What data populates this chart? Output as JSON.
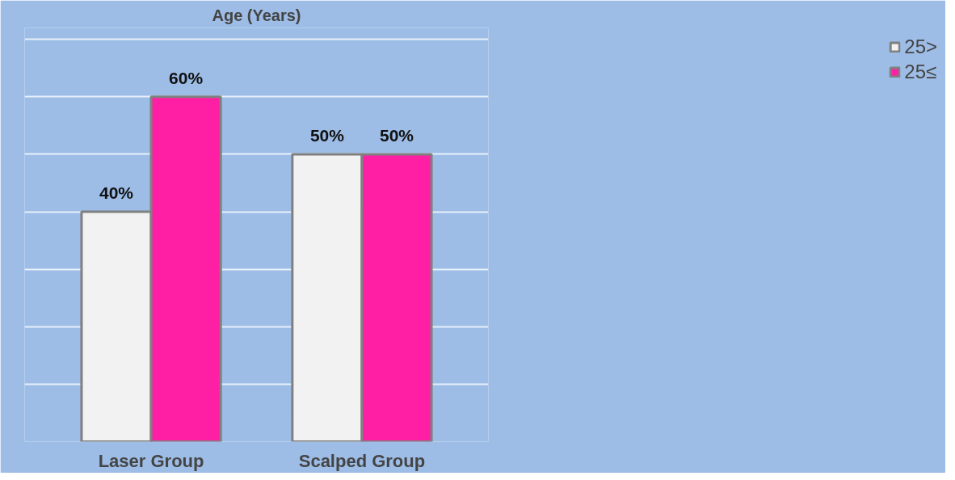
{
  "chart_data": {
    "type": "bar",
    "title": "Age (Years)",
    "categories": [
      "Laser Group",
      "Scalped Group"
    ],
    "series": [
      {
        "name": "25>",
        "color": "#f2f2f2",
        "values": [
          40,
          50
        ],
        "value_labels": [
          "40%",
          "50%"
        ]
      },
      {
        "name": "25≤",
        "color": "#ff1fa5",
        "values": [
          60,
          50
        ],
        "value_labels": [
          "60%",
          "50%"
        ]
      }
    ],
    "ylim": [
      0,
      72
    ],
    "yticks": [
      {
        "value": 0,
        "label": null
      },
      {
        "value": 10,
        "label": null
      },
      {
        "value": 20,
        "label": null
      },
      {
        "value": 30,
        "label": null
      },
      {
        "value": 40,
        "label": null
      },
      {
        "value": 50,
        "label": null
      },
      {
        "value": 60,
        "label": null
      },
      {
        "value": 70,
        "label": null
      }
    ],
    "grid": "y",
    "legend": "right",
    "tick_labels": "x"
  }
}
